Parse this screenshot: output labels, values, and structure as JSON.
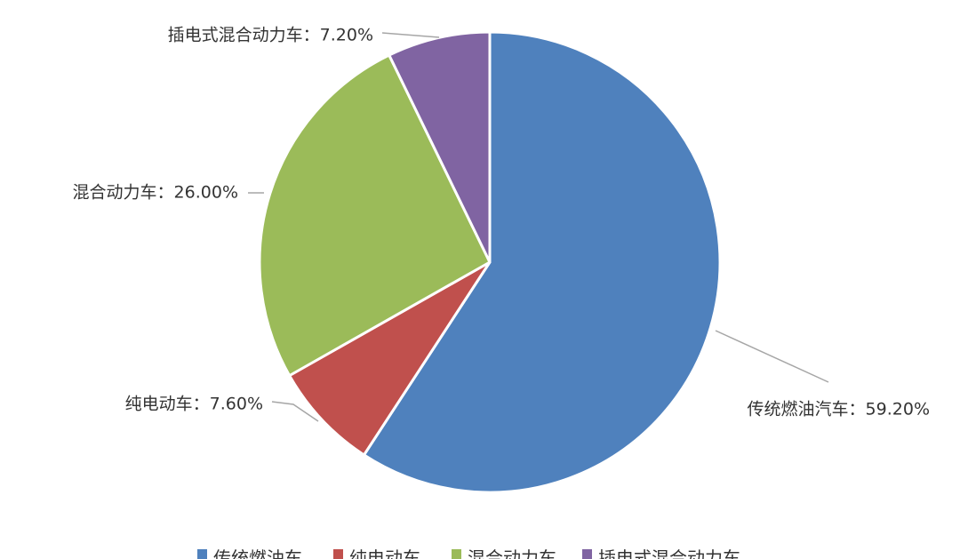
{
  "chart_data": {
    "type": "pie",
    "slices": [
      {
        "name": "传统燃油汽车",
        "value": 59.2,
        "label": "传统燃油汽车：59.20%",
        "color": "#4F81BD"
      },
      {
        "name": "纯电动车",
        "value": 7.6,
        "label": "纯电动车：7.60%",
        "color": "#C0504D"
      },
      {
        "name": "混合动力车",
        "value": 26.0,
        "label": "混合动力车：26.00%",
        "color": "#9BBB59"
      },
      {
        "name": "插电式混合动力车",
        "value": 7.2,
        "label": "插电式混合动力车：7.20%",
        "color": "#8064A2"
      }
    ],
    "legend": {
      "placement": "bottom",
      "items": [
        "传统燃油车",
        "纯电动车",
        "混合动力车",
        "插电式混合动力车"
      ]
    }
  }
}
